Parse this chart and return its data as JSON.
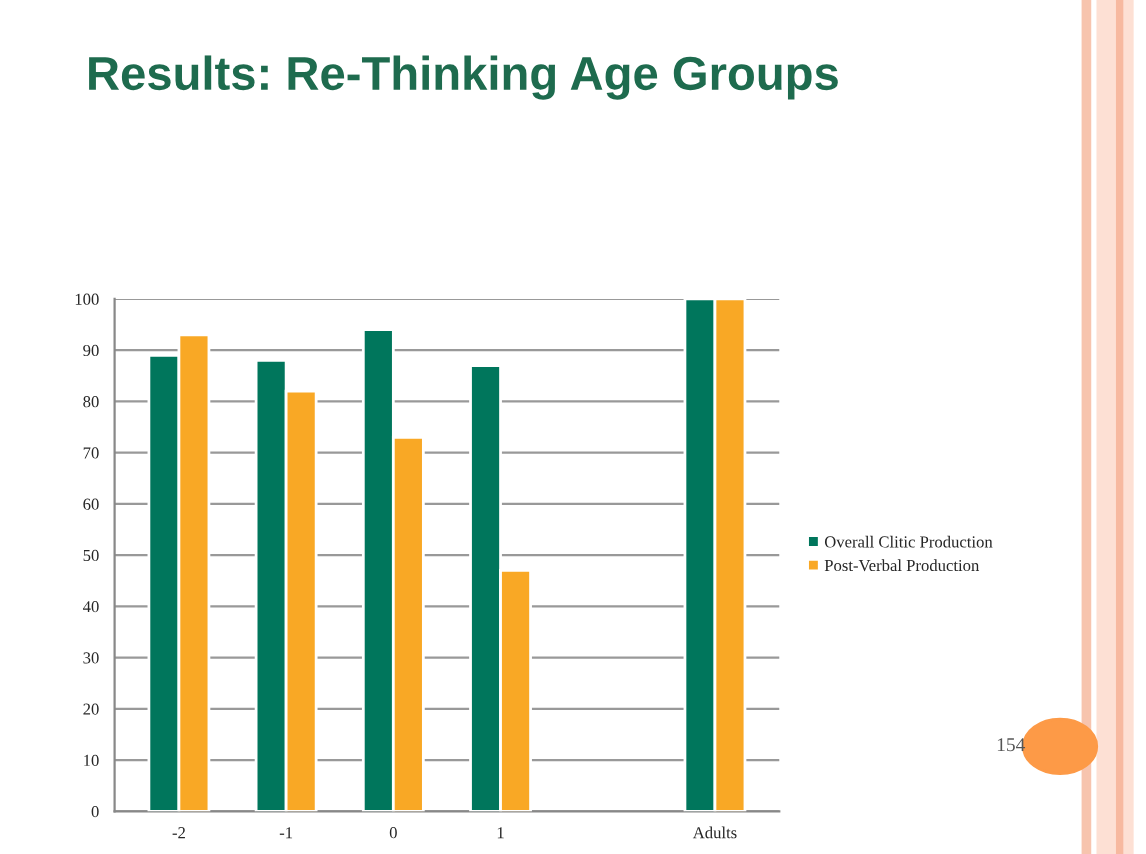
{
  "chart_data": {
    "type": "bar",
    "title": "Results: Re-Thinking Age Groups",
    "categories": [
      "-2",
      "-1",
      "0",
      "1",
      null,
      "Adults"
    ],
    "series": [
      {
        "name": "Overall Clitic Production",
        "color": "#00765c",
        "values": [
          89,
          88,
          94,
          87,
          null,
          100
        ]
      },
      {
        "name": "Post-Verbal Production",
        "color": "#f9a825",
        "values": [
          93,
          82,
          73,
          47,
          null,
          100
        ]
      }
    ],
    "ylim": [
      0,
      100
    ],
    "yticks": [
      0,
      10,
      20,
      30,
      40,
      50,
      60,
      70,
      80,
      90,
      100
    ],
    "grid": "y",
    "legend": "right",
    "annotations": [
      "154"
    ]
  }
}
